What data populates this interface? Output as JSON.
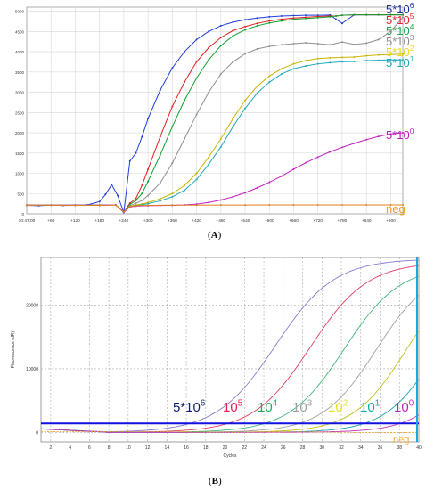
{
  "panel_a": {
    "caption": "A",
    "chart_data": {
      "type": "line",
      "x_tick_labels": [
        "10:47:00",
        "+60",
        "+120",
        "+180",
        "+240",
        "+300",
        "+360",
        "+420",
        "+480",
        "+540",
        "+600",
        "+660",
        "+720",
        "+780",
        "+840",
        "+900"
      ],
      "x_ticks": [
        0,
        60,
        120,
        180,
        240,
        300,
        360,
        420,
        480,
        540,
        600,
        660,
        720,
        780,
        840,
        900
      ],
      "xlim": [
        0,
        930
      ],
      "y_ticks": [
        0,
        500,
        1000,
        1500,
        2000,
        2500,
        3000,
        3500,
        4000,
        4500,
        5000
      ],
      "ylim": [
        0,
        5100
      ],
      "grid": true,
      "series": [
        {
          "name": "5*10^6",
          "label_base": "5*10",
          "label_exp": "6",
          "color": "#1f3fd8",
          "label_color": "#1a2f9c",
          "x": [
            0,
            30,
            60,
            90,
            120,
            150,
            180,
            195,
            210,
            225,
            240,
            255,
            270,
            285,
            300,
            330,
            360,
            390,
            420,
            450,
            480,
            510,
            540,
            570,
            600,
            630,
            660,
            690,
            720,
            750,
            765,
            780,
            810,
            840,
            870,
            900,
            930
          ],
          "values": [
            210,
            200,
            215,
            205,
            210,
            220,
            300,
            480,
            720,
            450,
            30,
            1300,
            1500,
            1900,
            2350,
            3050,
            3600,
            4000,
            4300,
            4500,
            4640,
            4730,
            4790,
            4830,
            4860,
            4880,
            4890,
            4900,
            4900,
            4905,
            4800,
            4700,
            4910,
            4910,
            4910,
            4910,
            4910
          ]
        },
        {
          "name": "5*10^5",
          "label_base": "5*10",
          "label_exp": "5",
          "color": "#e02020",
          "label_color": "#e8202a",
          "x": [
            0,
            60,
            120,
            180,
            220,
            240,
            255,
            270,
            285,
            300,
            330,
            360,
            390,
            420,
            450,
            480,
            510,
            540,
            570,
            600,
            630,
            660,
            690,
            720,
            750,
            765,
            780,
            810,
            840,
            870,
            900,
            930
          ],
          "values": [
            215,
            215,
            215,
            215,
            220,
            40,
            260,
            380,
            700,
            1100,
            1900,
            2650,
            3250,
            3750,
            4100,
            4350,
            4520,
            4620,
            4700,
            4760,
            4800,
            4830,
            4850,
            4870,
            4880,
            4880,
            4900,
            4910,
            4910,
            4910,
            4910,
            4910
          ]
        },
        {
          "name": "5*10^4",
          "label_base": "5*10",
          "label_exp": "4",
          "color": "#10a030",
          "label_color": "#16a84a",
          "x": [
            0,
            60,
            120,
            180,
            220,
            240,
            255,
            270,
            285,
            300,
            330,
            360,
            390,
            420,
            450,
            480,
            510,
            540,
            570,
            600,
            630,
            660,
            690,
            720,
            750,
            765,
            780,
            810,
            840,
            870,
            900,
            930
          ],
          "values": [
            215,
            215,
            215,
            215,
            220,
            40,
            230,
            330,
            500,
            800,
            1450,
            2150,
            2800,
            3350,
            3800,
            4150,
            4390,
            4540,
            4640,
            4710,
            4760,
            4800,
            4820,
            4840,
            4860,
            4880,
            4900,
            4910,
            4910,
            4910,
            4910,
            4910
          ]
        },
        {
          "name": "5*10^3",
          "label_base": "5*10",
          "label_exp": "3",
          "color": "#909090",
          "label_color": "#909090",
          "x": [
            0,
            60,
            120,
            180,
            220,
            240,
            255,
            270,
            285,
            300,
            330,
            360,
            390,
            420,
            450,
            480,
            510,
            540,
            570,
            600,
            630,
            660,
            690,
            720,
            750,
            780,
            810,
            840,
            870,
            900,
            930
          ],
          "values": [
            215,
            215,
            215,
            215,
            220,
            40,
            200,
            260,
            330,
            450,
            760,
            1250,
            1850,
            2450,
            3000,
            3450,
            3750,
            3950,
            4070,
            4130,
            4170,
            4200,
            4220,
            4200,
            4170,
            4240,
            4180,
            4210,
            4300,
            4500,
            4850
          ]
        },
        {
          "name": "5*10^2",
          "label_base": "5*10",
          "label_exp": "2",
          "color": "#c8b400",
          "label_color": "#e8d820",
          "x": [
            0,
            60,
            120,
            180,
            220,
            240,
            255,
            270,
            285,
            300,
            330,
            360,
            390,
            420,
            450,
            480,
            510,
            540,
            570,
            600,
            630,
            660,
            690,
            720,
            750,
            780,
            810,
            840,
            870,
            900,
            930
          ],
          "values": [
            215,
            215,
            215,
            215,
            220,
            40,
            180,
            220,
            240,
            280,
            370,
            500,
            700,
            1000,
            1400,
            1850,
            2350,
            2800,
            3150,
            3400,
            3580,
            3700,
            3780,
            3830,
            3850,
            3860,
            3870,
            3900,
            3920,
            3930,
            3940
          ]
        },
        {
          "name": "5*10^1",
          "label_base": "5*10",
          "label_exp": "1",
          "color": "#20a8b8",
          "label_color": "#20a8b8",
          "x": [
            0,
            60,
            120,
            180,
            220,
            240,
            255,
            270,
            285,
            300,
            330,
            360,
            390,
            420,
            450,
            480,
            510,
            540,
            570,
            600,
            630,
            660,
            690,
            720,
            750,
            780,
            810,
            840,
            870,
            900,
            930
          ],
          "values": [
            215,
            215,
            215,
            215,
            220,
            40,
            170,
            200,
            220,
            250,
            320,
            420,
            580,
            850,
            1220,
            1650,
            2150,
            2600,
            2980,
            3250,
            3450,
            3580,
            3650,
            3700,
            3730,
            3750,
            3760,
            3780,
            3790,
            3800,
            3800
          ]
        },
        {
          "name": "5*10^0",
          "label_base": "5*10",
          "label_exp": "0",
          "color": "#c020c0",
          "label_color": "#c020c0",
          "x": [
            0,
            60,
            120,
            180,
            220,
            240,
            255,
            270,
            300,
            330,
            360,
            390,
            420,
            450,
            480,
            510,
            540,
            570,
            600,
            630,
            660,
            690,
            720,
            750,
            780,
            810,
            840,
            870,
            900,
            930
          ],
          "values": [
            215,
            215,
            215,
            215,
            220,
            40,
            170,
            190,
            200,
            205,
            210,
            220,
            240,
            280,
            340,
            420,
            520,
            640,
            780,
            930,
            1100,
            1260,
            1400,
            1530,
            1640,
            1740,
            1830,
            1910,
            1970,
            2000
          ]
        },
        {
          "name": "neg",
          "label_base": "neg",
          "label_exp": "",
          "color": "#e08020",
          "label_color": "#f0a020",
          "x": [
            0,
            60,
            120,
            180,
            220,
            240,
            255,
            270,
            300,
            360,
            420,
            480,
            540,
            600,
            660,
            720,
            780,
            840,
            900,
            930
          ],
          "values": [
            215,
            215,
            210,
            210,
            215,
            50,
            180,
            200,
            210,
            215,
            215,
            218,
            218,
            220,
            220,
            220,
            220,
            220,
            220,
            220
          ]
        }
      ]
    }
  },
  "panel_b": {
    "caption": "B",
    "chart_data": {
      "type": "line",
      "xlabel": "Cycles",
      "ylabel": "Fluorescence (dR)",
      "x_ticks": [
        2,
        4,
        6,
        8,
        10,
        12,
        14,
        16,
        18,
        20,
        22,
        24,
        26,
        28,
        30,
        32,
        34,
        36,
        38,
        40
      ],
      "xlim": [
        1,
        40
      ],
      "y_ticks": [
        0,
        10000,
        20000
      ],
      "ylim": [
        -1500,
        27500
      ],
      "grid": true,
      "threshold": 1400,
      "threshold_color": "#1010e0",
      "series": [
        {
          "name": "5*10^6",
          "label_base": "5*10",
          "label_exp": "6",
          "color": "#8a7ad0",
          "label_color": "#14207a",
          "ct": 25.2,
          "plateau": 27300,
          "k": 0.33
        },
        {
          "name": "10^5",
          "label_base": "10",
          "label_exp": "5",
          "color": "#e04060",
          "label_color": "#e82050",
          "ct": 28.8,
          "plateau": 26800,
          "k": 0.34
        },
        {
          "name": "10^4",
          "label_base": "10",
          "label_exp": "4",
          "color": "#40b878",
          "label_color": "#18b060",
          "ct": 32.3,
          "plateau": 26200,
          "k": 0.35
        },
        {
          "name": "10^3",
          "label_base": "10",
          "label_exp": "3",
          "color": "#a0a0a0",
          "label_color": "#a0a0a0",
          "ct": 35.6,
          "plateau": 26000,
          "k": 0.36
        },
        {
          "name": "10^2",
          "label_base": "10",
          "label_exp": "2",
          "color": "#c0c020",
          "label_color": "#e8e020",
          "ct": 38.6,
          "plateau": 25500,
          "k": 0.37
        },
        {
          "name": "10^1",
          "label_base": "10",
          "label_exp": "1",
          "color": "#20a0b0",
          "label_color": "#10a8a8",
          "ct": 41.8,
          "plateau": 25000,
          "k": 0.38
        },
        {
          "name": "10^0",
          "label_base": "10",
          "label_exp": "0",
          "color": "#c030c0",
          "label_color": "#c020c0",
          "ct": 45.5,
          "plateau": 25000,
          "k": 0.38
        },
        {
          "name": "neg",
          "label_base": "neg",
          "label_exp": "",
          "color": "#f0a030",
          "label_color": "#f0b040",
          "ct": 99,
          "plateau": 0,
          "k": 0.3
        }
      ]
    }
  }
}
